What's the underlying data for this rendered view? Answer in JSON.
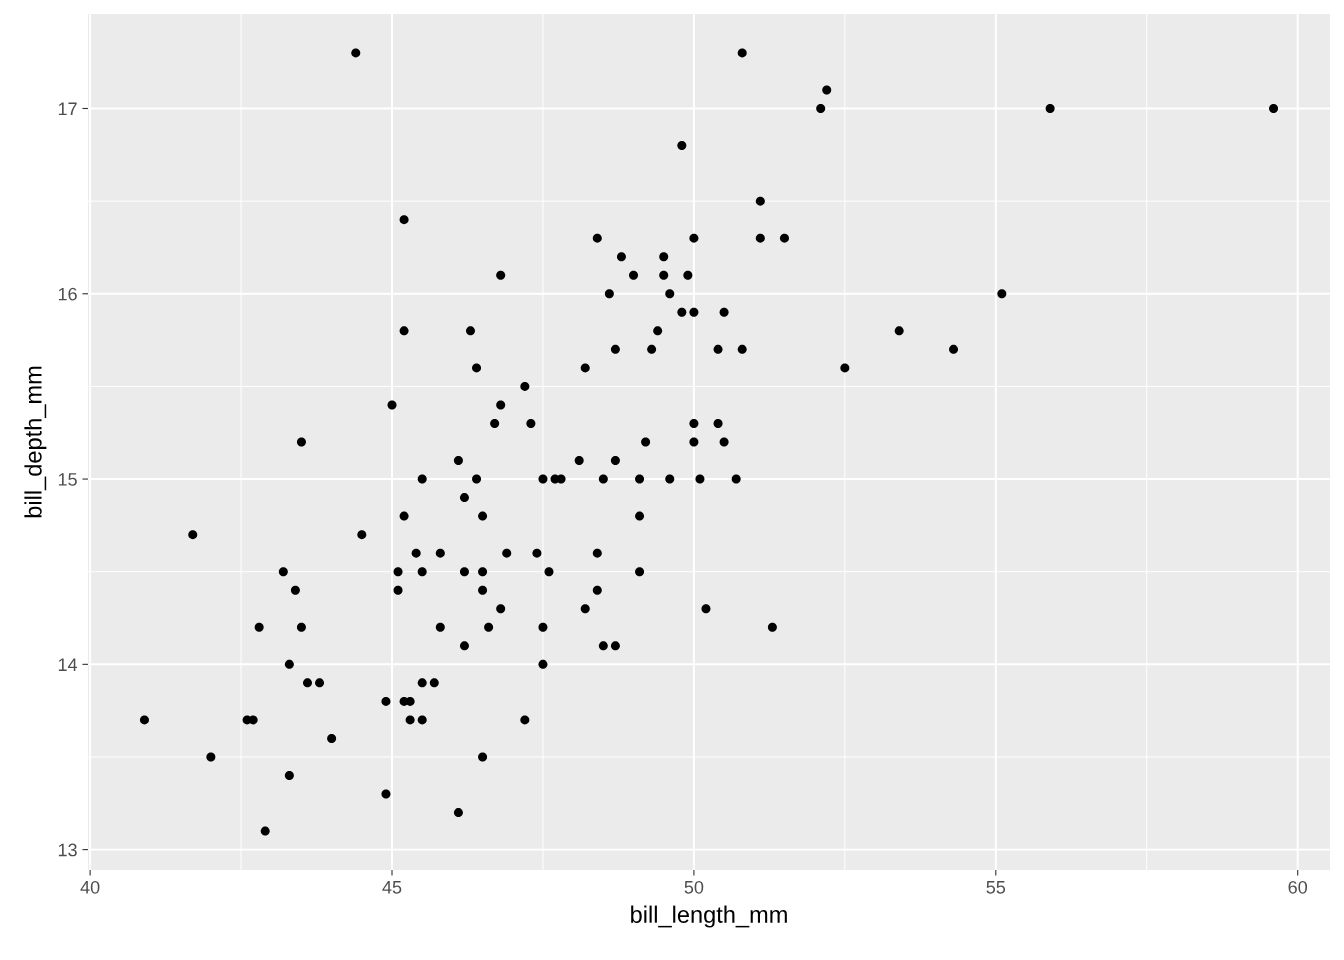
{
  "chart_data": {
    "type": "scatter",
    "xlabel": "bill_length_mm",
    "ylabel": "bill_depth_mm",
    "xlim": [
      39.965,
      60.535
    ],
    "ylim": [
      12.89,
      17.51
    ],
    "xticks": [
      40,
      45,
      50,
      55,
      60
    ],
    "yticks": [
      13,
      14,
      15,
      16,
      17
    ],
    "grid": true,
    "marker": "circle",
    "series": [
      {
        "color": "#000000",
        "x": [
          44.4,
          50.8,
          52.2,
          52.1,
          55.9,
          59.6,
          49.8,
          51.1,
          45.2,
          48.4,
          50.0,
          51.1,
          51.5,
          48.8,
          49.5,
          46.8,
          49.0,
          49.5,
          49.9,
          48.6,
          49.6,
          55.1,
          49.8,
          50.0,
          50.5,
          45.2,
          46.3,
          49.4,
          53.4,
          48.7,
          49.3,
          50.4,
          50.8,
          54.3,
          46.4,
          48.2,
          52.5,
          47.2,
          45.0,
          46.8,
          46.7,
          47.3,
          50.0,
          50.4,
          43.5,
          49.2,
          50.0,
          50.5,
          46.1,
          48.1,
          48.7,
          45.5,
          46.4,
          47.5,
          47.7,
          47.8,
          48.5,
          49.1,
          49.6,
          50.1,
          50.7,
          46.2,
          45.2,
          46.5,
          49.1,
          41.7,
          44.5,
          45.4,
          45.8,
          46.9,
          47.4,
          48.4,
          43.2,
          45.1,
          45.5,
          46.2,
          46.5,
          47.6,
          49.1,
          43.4,
          45.1,
          46.5,
          48.4,
          46.8,
          48.2,
          50.2,
          42.8,
          43.5,
          45.8,
          46.6,
          47.5,
          51.3,
          46.2,
          48.5,
          48.7,
          43.3,
          47.5,
          43.6,
          43.8,
          45.5,
          45.7,
          44.9,
          45.2,
          45.3,
          40.9,
          42.6,
          42.7,
          45.3,
          45.5,
          47.2,
          44.0,
          42.0,
          46.5,
          43.3,
          44.9,
          46.1,
          42.9
        ],
        "values": [
          17.3,
          17.3,
          17.1,
          17.0,
          17.0,
          17.0,
          16.8,
          16.5,
          16.4,
          16.3,
          16.3,
          16.3,
          16.3,
          16.2,
          16.2,
          16.1,
          16.1,
          16.1,
          16.1,
          16.0,
          16.0,
          16.0,
          15.9,
          15.9,
          15.9,
          15.8,
          15.8,
          15.8,
          15.8,
          15.7,
          15.7,
          15.7,
          15.7,
          15.7,
          15.6,
          15.6,
          15.6,
          15.5,
          15.4,
          15.4,
          15.3,
          15.3,
          15.3,
          15.3,
          15.2,
          15.2,
          15.2,
          15.2,
          15.1,
          15.1,
          15.1,
          15.0,
          15.0,
          15.0,
          15.0,
          15.0,
          15.0,
          15.0,
          15.0,
          15.0,
          15.0,
          14.9,
          14.8,
          14.8,
          14.8,
          14.7,
          14.7,
          14.6,
          14.6,
          14.6,
          14.6,
          14.6,
          14.5,
          14.5,
          14.5,
          14.5,
          14.5,
          14.5,
          14.5,
          14.4,
          14.4,
          14.4,
          14.4,
          14.3,
          14.3,
          14.3,
          14.2,
          14.2,
          14.2,
          14.2,
          14.2,
          14.2,
          14.1,
          14.1,
          14.1,
          14.0,
          14.0,
          13.9,
          13.9,
          13.9,
          13.9,
          13.8,
          13.8,
          13.8,
          13.7,
          13.7,
          13.7,
          13.7,
          13.7,
          13.7,
          13.6,
          13.5,
          13.5,
          13.4,
          13.3,
          13.2,
          13.1
        ]
      }
    ]
  }
}
